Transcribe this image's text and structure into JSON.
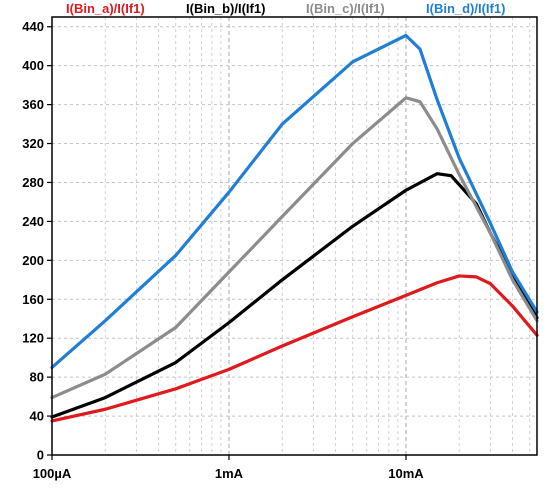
{
  "chart_data": {
    "type": "line",
    "x_scale": "log",
    "xlim": [
      0.0001,
      0.055
    ],
    "ylim": [
      0,
      450
    ],
    "grid": true,
    "legend_placement": "top",
    "x_ticks": [
      {
        "value": 0.0001,
        "label": "100µA"
      },
      {
        "value": 0.001,
        "label": "1mA"
      },
      {
        "value": 0.01,
        "label": "10mA"
      }
    ],
    "y_ticks": [
      0,
      40,
      80,
      120,
      160,
      200,
      240,
      280,
      320,
      360,
      400,
      440
    ],
    "series": [
      {
        "name": "I(Bin_a)/I(If1)",
        "color": "#e0191d",
        "points": [
          [
            0.0001,
            35
          ],
          [
            0.0002,
            47
          ],
          [
            0.0005,
            68
          ],
          [
            0.001,
            88
          ],
          [
            0.002,
            112
          ],
          [
            0.005,
            142
          ],
          [
            0.01,
            164
          ],
          [
            0.015,
            177
          ],
          [
            0.02,
            184
          ],
          [
            0.025,
            183
          ],
          [
            0.03,
            176
          ],
          [
            0.04,
            153
          ],
          [
            0.055,
            123
          ]
        ]
      },
      {
        "name": "I(Bin_b)/I(If1)",
        "color": "#000000",
        "points": [
          [
            0.0001,
            39
          ],
          [
            0.0002,
            59
          ],
          [
            0.0005,
            95
          ],
          [
            0.001,
            136
          ],
          [
            0.002,
            180
          ],
          [
            0.005,
            235
          ],
          [
            0.01,
            272
          ],
          [
            0.015,
            289
          ],
          [
            0.018,
            287
          ],
          [
            0.025,
            258
          ],
          [
            0.03,
            228
          ],
          [
            0.04,
            185
          ],
          [
            0.055,
            141
          ]
        ]
      },
      {
        "name": "I(Bin_c)/I(If1)",
        "color": "#8c8c8c",
        "points": [
          [
            0.0001,
            59
          ],
          [
            0.0002,
            83
          ],
          [
            0.0005,
            131
          ],
          [
            0.001,
            188
          ],
          [
            0.002,
            245
          ],
          [
            0.005,
            320
          ],
          [
            0.01,
            367
          ],
          [
            0.012,
            363
          ],
          [
            0.015,
            335
          ],
          [
            0.02,
            288
          ],
          [
            0.03,
            228
          ],
          [
            0.04,
            180
          ],
          [
            0.055,
            138
          ]
        ]
      },
      {
        "name": "I(Bin_d)/I(If1)",
        "color": "#1f7fd6",
        "points": [
          [
            0.0001,
            90
          ],
          [
            0.0002,
            138
          ],
          [
            0.0005,
            205
          ],
          [
            0.001,
            270
          ],
          [
            0.002,
            340
          ],
          [
            0.005,
            404
          ],
          [
            0.01,
            431
          ],
          [
            0.012,
            417
          ],
          [
            0.015,
            365
          ],
          [
            0.02,
            305
          ],
          [
            0.03,
            238
          ],
          [
            0.04,
            188
          ],
          [
            0.055,
            147
          ]
        ]
      }
    ]
  }
}
